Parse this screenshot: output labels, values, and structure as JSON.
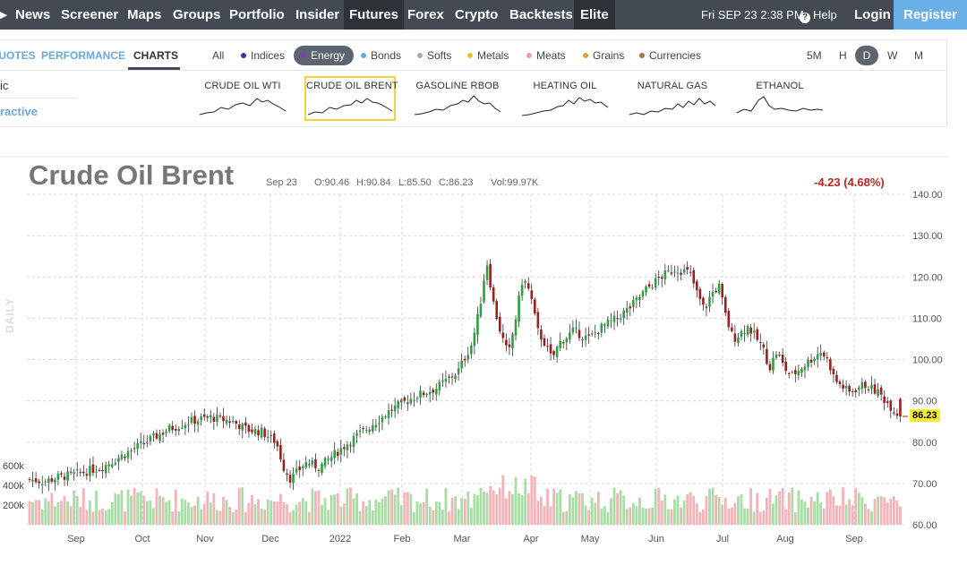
{
  "topnav": {
    "items": [
      "News",
      "Screener",
      "Maps",
      "Groups",
      "Portfolio",
      "Insider",
      "Futures",
      "Forex",
      "Crypto",
      "Backtests",
      "Elite"
    ],
    "active": "Futures",
    "datetime": "Fri SEP 23 2:38 PM",
    "help": "Help",
    "login": "Login",
    "register": "Register"
  },
  "subtabs": [
    "QUOTES",
    "PERFORMANCE",
    "CHARTS"
  ],
  "subtab_active": "CHARTS",
  "filters": [
    {
      "label": "All",
      "color": ""
    },
    {
      "label": "Indices",
      "color": "#2b3a9c"
    },
    {
      "label": "Energy",
      "color": "#7b3fbf"
    },
    {
      "label": "Bonds",
      "color": "#6aa9df"
    },
    {
      "label": "Softs",
      "color": "#aaaaaa"
    },
    {
      "label": "Metals",
      "color": "#e8c22c"
    },
    {
      "label": "Meats",
      "color": "#e79bc4"
    },
    {
      "label": "Grains",
      "color": "#d9a23a"
    },
    {
      "label": "Currencies",
      "color": "#a07a4a"
    }
  ],
  "filter_active": "Energy",
  "timeframes": [
    "5M",
    "H",
    "D",
    "W",
    "M"
  ],
  "timeframe_active": "D",
  "left_panel": {
    "line1": "ic",
    "line2": "ractive"
  },
  "minicharts": [
    "CRUDE OIL WTI",
    "CRUDE OIL BRENT",
    "GASOLINE RBOB",
    "HEATING OIL",
    "NATURAL GAS",
    "ETHANOL"
  ],
  "minichart_selected": "CRUDE OIL BRENT",
  "chart": {
    "title": "Crude Oil Brent",
    "date": "Sep 23",
    "open": "O:90.46",
    "high": "H:90.84",
    "low": "L:85.50",
    "close": "C:86.23",
    "volume": "Vol:99.97K",
    "change": "-4.23 (4.68%)",
    "last_price": "86.23",
    "daily_label": "DAILY"
  },
  "chart_data": {
    "type": "candlestick",
    "y_axis_ticks": [
      "140.00",
      "130.00",
      "120.00",
      "110.00",
      "100.00",
      "90.00",
      "80.00",
      "70.00",
      "60.00"
    ],
    "volume_axis_ticks": [
      "600k",
      "400k",
      "200k"
    ],
    "x_labels": [
      "Sep",
      "Oct",
      "Nov",
      "Dec",
      "2022",
      "Feb",
      "Mar",
      "Apr",
      "May",
      "Jun",
      "Jul",
      "Aug",
      "Sep"
    ],
    "ylim": [
      60,
      140
    ],
    "close_trend": [
      [
        0,
        71
      ],
      [
        10,
        70.5
      ],
      [
        20,
        71.5
      ],
      [
        35,
        72.5
      ],
      [
        50,
        74
      ],
      [
        65,
        77
      ],
      [
        80,
        80
      ],
      [
        95,
        83
      ],
      [
        110,
        85
      ],
      [
        125,
        86
      ],
      [
        140,
        85
      ],
      [
        150,
        83
      ],
      [
        160,
        82.5
      ],
      [
        170,
        80
      ],
      [
        175,
        74
      ],
      [
        180,
        71
      ],
      [
        190,
        75
      ],
      [
        200,
        74
      ],
      [
        210,
        77
      ],
      [
        220,
        80
      ],
      [
        235,
        84
      ],
      [
        250,
        88
      ],
      [
        265,
        91
      ],
      [
        280,
        93
      ],
      [
        295,
        97
      ],
      [
        305,
        104
      ],
      [
        310,
        112
      ],
      [
        315,
        124
      ],
      [
        320,
        113
      ],
      [
        325,
        106
      ],
      [
        330,
        101
      ],
      [
        335,
        110
      ],
      [
        340,
        120
      ],
      [
        345,
        116
      ],
      [
        350,
        107
      ],
      [
        355,
        104
      ],
      [
        360,
        100
      ],
      [
        365,
        104
      ],
      [
        375,
        107
      ],
      [
        385,
        105
      ],
      [
        395,
        108
      ],
      [
        405,
        110
      ],
      [
        415,
        113
      ],
      [
        425,
        117
      ],
      [
        435,
        120
      ],
      [
        445,
        122
      ],
      [
        455,
        121
      ],
      [
        460,
        116
      ],
      [
        465,
        112
      ],
      [
        470,
        116
      ],
      [
        475,
        118
      ],
      [
        480,
        110
      ],
      [
        485,
        105
      ],
      [
        495,
        108
      ],
      [
        505,
        103
      ],
      [
        510,
        98
      ],
      [
        515,
        102
      ],
      [
        520,
        98
      ],
      [
        525,
        96
      ],
      [
        535,
        99
      ],
      [
        545,
        102
      ],
      [
        550,
        100
      ],
      [
        555,
        95
      ],
      [
        565,
        92
      ],
      [
        575,
        94
      ],
      [
        585,
        92
      ],
      [
        590,
        90
      ],
      [
        600,
        86
      ]
    ],
    "total_days": 600,
    "volume_level_thousands": [
      100,
      600
    ]
  }
}
